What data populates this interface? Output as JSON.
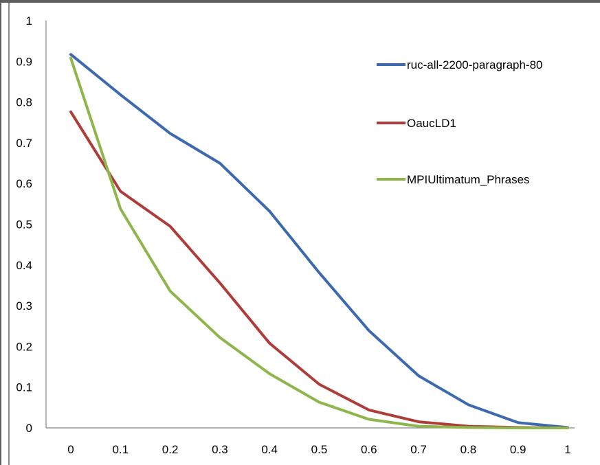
{
  "chart_data": {
    "type": "line",
    "title": "",
    "xlabel": "",
    "ylabel": "",
    "x": [
      0,
      0.1,
      0.2,
      0.3,
      0.4,
      0.5,
      0.6,
      0.7,
      0.8,
      0.9,
      1
    ],
    "x_tick_labels": [
      "0",
      "0.1",
      "0.2",
      "0.3",
      "0.4",
      "0.5",
      "0.6",
      "0.7",
      "0.8",
      "0.9",
      "1"
    ],
    "y_tick_labels": [
      "0",
      "0.1",
      "0.2",
      "0.3",
      "0.4",
      "0.5",
      "0.6",
      "0.7",
      "0.8",
      "0.9",
      "1"
    ],
    "xlim": [
      0,
      1
    ],
    "ylim": [
      0,
      1
    ],
    "grid": false,
    "legend_position": "top-right",
    "series": [
      {
        "name": "ruc-all-2200-paragraph-80",
        "color": "#3d6aae",
        "values": [
          0.917,
          0.818,
          0.723,
          0.65,
          0.532,
          0.381,
          0.239,
          0.128,
          0.057,
          0.013,
          0.001
        ]
      },
      {
        "name": "OaucLD1",
        "color": "#ae3d3a",
        "values": [
          0.776,
          0.581,
          0.495,
          0.356,
          0.208,
          0.107,
          0.044,
          0.015,
          0.004,
          0.001,
          0.0
        ]
      },
      {
        "name": "MPIUltimatum_Phrases",
        "color": "#8eb64d",
        "values": [
          0.908,
          0.538,
          0.336,
          0.222,
          0.133,
          0.063,
          0.021,
          0.004,
          0.001,
          0.0,
          0.0
        ]
      }
    ]
  }
}
